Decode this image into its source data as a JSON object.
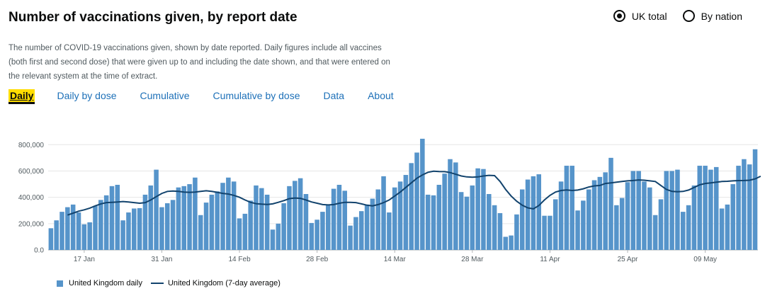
{
  "header": {
    "title": "Number of vaccinations given, by report date",
    "description": "The number of COVID-19 vaccinations given, shown by date reported. Daily figures include all vaccines (both first and second dose) that were given up to and including the date shown, and that were entered on the relevant system at the time of extract."
  },
  "radios": [
    {
      "label": "UK total",
      "selected": true
    },
    {
      "label": "By nation",
      "selected": false
    }
  ],
  "tabs": [
    {
      "label": "Daily",
      "active": true
    },
    {
      "label": "Daily by dose",
      "active": false
    },
    {
      "label": "Cumulative",
      "active": false
    },
    {
      "label": "Cumulative by dose",
      "active": false
    },
    {
      "label": "Data",
      "active": false
    },
    {
      "label": "About",
      "active": false
    }
  ],
  "legend": {
    "daily": "United Kingdom daily",
    "average": "United Kingdom (7-day average)"
  },
  "chart_data": {
    "type": "bar",
    "x_start": "2021-01-11",
    "x_tick_labels": [
      "17 Jan",
      "31 Jan",
      "14 Feb",
      "28 Feb",
      "14 Mar",
      "28 Mar",
      "11 Apr",
      "25 Apr",
      "09 May"
    ],
    "y_tick_labels": [
      "0.0",
      "200,000",
      "400,000",
      "600,000",
      "800,000"
    ],
    "ylim": [
      0,
      850000
    ],
    "grid": true,
    "colors": {
      "bars": "#5694ca",
      "line": "#12436d"
    },
    "series": [
      {
        "name": "United Kingdom daily",
        "values": [
          165000,
          225000,
          290000,
          325000,
          345000,
          285000,
          195000,
          210000,
          335000,
          380000,
          415000,
          485000,
          495000,
          225000,
          285000,
          315000,
          318000,
          420000,
          490000,
          610000,
          325000,
          355000,
          380000,
          475000,
          485000,
          500000,
          550000,
          265000,
          360000,
          420000,
          445000,
          510000,
          550000,
          520000,
          240000,
          275000,
          375000,
          490000,
          470000,
          420000,
          155000,
          200000,
          355000,
          485000,
          525000,
          545000,
          425000,
          205000,
          230000,
          290000,
          345000,
          465000,
          495000,
          450000,
          185000,
          250000,
          295000,
          345000,
          390000,
          460000,
          560000,
          285000,
          475000,
          520000,
          570000,
          660000,
          740000,
          845000,
          420000,
          415000,
          495000,
          580000,
          690000,
          665000,
          440000,
          405000,
          490000,
          620000,
          615000,
          425000,
          340000,
          280000,
          100000,
          110000,
          270000,
          460000,
          535000,
          560000,
          575000,
          260000,
          260000,
          385000,
          520000,
          640000,
          640000,
          300000,
          375000,
          460000,
          530000,
          555000,
          590000,
          700000,
          340000,
          395000,
          515000,
          600000,
          600000,
          520000,
          475000,
          265000,
          385000,
          600000,
          600000,
          610000,
          290000,
          340000,
          490000,
          640000,
          640000,
          610000,
          630000,
          315000,
          345000,
          500000,
          640000,
          690000,
          650000,
          765000
        ]
      },
      {
        "name": "United Kingdom (7-day average)",
        "start_index": 3,
        "values": [
          265000,
          280000,
          295000,
          305000,
          318000,
          335000,
          350000,
          360000,
          362000,
          365000,
          368000,
          365000,
          360000,
          355000,
          360000,
          380000,
          405000,
          430000,
          445000,
          448000,
          445000,
          440000,
          438000,
          440000,
          445000,
          450000,
          445000,
          438000,
          430000,
          425000,
          415000,
          400000,
          380000,
          362000,
          352000,
          348000,
          346000,
          350000,
          362000,
          375000,
          390000,
          395000,
          392000,
          380000,
          365000,
          355000,
          345000,
          342000,
          345000,
          355000,
          362000,
          362000,
          360000,
          350000,
          340000,
          335000,
          345000,
          360000,
          380000,
          410000,
          440000,
          475000,
          510000,
          545000,
          570000,
          590000,
          598000,
          596000,
          595000,
          588000,
          575000,
          562000,
          555000,
          553000,
          555000,
          562000,
          567000,
          565000,
          520000,
          460000,
          410000,
          370000,
          340000,
          320000,
          312000,
          338000,
          380000,
          415000,
          440000,
          452000,
          456000,
          452000,
          455000,
          465000,
          478000,
          487000,
          490000,
          505000,
          510000,
          515000,
          520000,
          525000,
          528000,
          532000,
          530000,
          525000,
          520000,
          490000,
          460000,
          445000,
          442000,
          445000,
          455000,
          475000,
          495000,
          505000,
          510000,
          515000,
          520000,
          522000,
          525000,
          527000,
          528000,
          530000,
          540000,
          560000
        ]
      }
    ]
  }
}
